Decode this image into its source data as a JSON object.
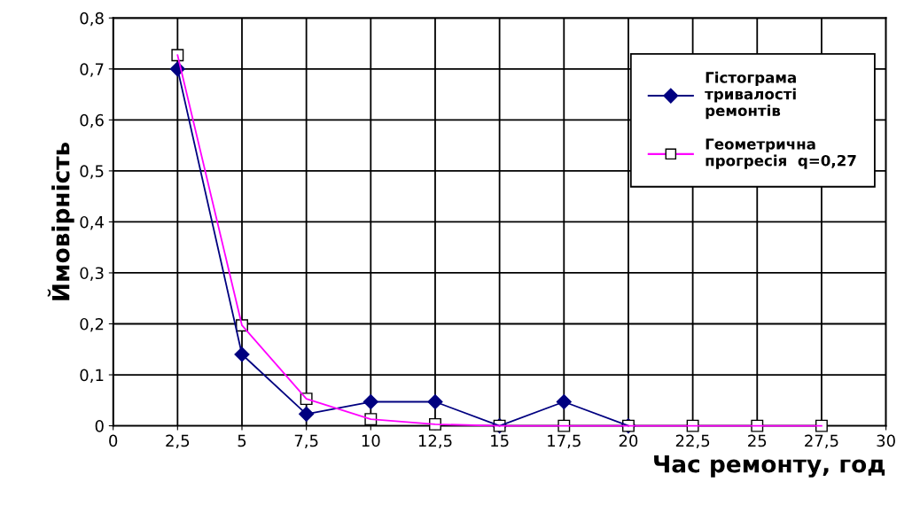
{
  "chart_data": {
    "type": "line",
    "xlabel": "Час ремонту, год",
    "ylabel": "Ймовірність",
    "xlim": [
      0,
      30
    ],
    "xticks": [
      0,
      {
        "value": 2.5,
        "label": "2,5"
      },
      5,
      {
        "value": 7.5,
        "label": "7,5"
      },
      10,
      {
        "value": 12.5,
        "label": "12,5"
      },
      15,
      {
        "value": 17.5,
        "label": "17,5"
      },
      20,
      {
        "value": 22.5,
        "label": "22,5"
      },
      25,
      {
        "value": 27.5,
        "label": "27,5"
      },
      30
    ],
    "ylim": [
      0,
      0.8
    ],
    "yticks": [
      0,
      {
        "value": 0.1,
        "label": "0,1"
      },
      {
        "value": 0.2,
        "label": "0,2"
      },
      {
        "value": 0.3,
        "label": "0,3"
      },
      {
        "value": 0.4,
        "label": "0,4"
      },
      {
        "value": 0.5,
        "label": "0,5"
      },
      {
        "value": 0.6,
        "label": "0,6"
      },
      {
        "value": 0.7,
        "label": "0,7"
      },
      {
        "value": 0.8,
        "label": "0,8"
      }
    ],
    "grid": true,
    "legend": "top right",
    "line_style": "solid",
    "series": [
      {
        "name": "Гістограма\nтривалості\nремонтів",
        "color": "#000080",
        "marker": "diamond",
        "x": [
          2.5,
          5,
          7.5,
          10,
          12.5,
          15,
          17.5,
          20
        ],
        "values": [
          0.7,
          0.14,
          0.023,
          0.047,
          0.047,
          0,
          0.047,
          0
        ]
      },
      {
        "name": "Геометрична\nпрогресія  q=0,27",
        "color": "#ff00ff",
        "marker": "square",
        "x": [
          2.5,
          5,
          7.5,
          10,
          12.5,
          15,
          17.5,
          20,
          22.5,
          25,
          27.5
        ],
        "values": [
          0.727,
          0.197,
          0.053,
          0.013,
          0.003,
          0,
          0,
          0,
          0,
          0,
          0
        ]
      }
    ]
  }
}
